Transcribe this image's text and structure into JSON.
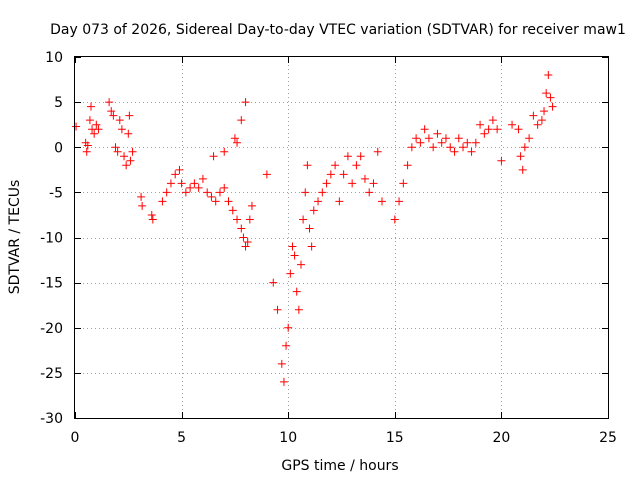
{
  "chart_data": {
    "type": "scatter",
    "title": "Day 073 of 2026, Sidereal Day-to-day VTEC variation (SDTVAR) for receiver maw1",
    "xlabel": "GPS time / hours",
    "ylabel": "SDTVAR / TECUs",
    "xlim": [
      0,
      25
    ],
    "ylim": [
      -30,
      10
    ],
    "xticks": [
      0,
      5,
      10,
      15,
      20,
      25
    ],
    "xtick_labels": [
      "0",
      "5",
      "10",
      "15",
      "20",
      "25"
    ],
    "yticks": [
      -30,
      -25,
      -20,
      -15,
      -10,
      -5,
      0,
      5,
      10
    ],
    "ytick_labels": [
      "-30",
      "-25",
      "-20",
      "-15",
      "-10",
      "-5",
      "0",
      "5",
      "10"
    ],
    "grid": true,
    "marker": "+",
    "color": "#ff0000",
    "series": [
      {
        "name": "SDTVAR",
        "x": [
          0.05,
          0.5,
          0.55,
          0.6,
          0.7,
          0.75,
          0.8,
          0.9,
          1.0,
          1.1,
          1.6,
          1.7,
          1.8,
          1.9,
          2.0,
          2.1,
          2.2,
          2.3,
          2.4,
          2.5,
          2.55,
          2.6,
          2.7,
          3.1,
          3.15,
          3.6,
          3.65,
          4.1,
          4.3,
          4.5,
          4.7,
          4.9,
          5.0,
          5.2,
          5.4,
          5.6,
          5.8,
          6.0,
          6.2,
          6.4,
          6.6,
          6.8,
          7.0,
          7.2,
          7.4,
          7.6,
          7.8,
          7.9,
          8.0,
          8.1,
          8.2,
          8.3,
          6.5,
          7.0,
          7.5,
          7.8,
          7.6,
          8.0,
          9.0,
          9.3,
          9.5,
          9.7,
          9.8,
          9.9,
          10.0,
          10.1,
          10.2,
          10.3,
          10.4,
          10.5,
          10.6,
          10.7,
          10.8,
          10.9,
          11.0,
          11.1,
          11.2,
          11.4,
          11.6,
          11.8,
          12.0,
          12.2,
          12.4,
          12.6,
          12.8,
          13.0,
          13.2,
          13.4,
          13.6,
          13.8,
          14.0,
          14.2,
          14.4,
          15.0,
          15.2,
          15.4,
          15.6,
          15.8,
          16.0,
          16.2,
          16.4,
          16.6,
          16.8,
          17.0,
          17.2,
          17.4,
          17.6,
          17.8,
          18.0,
          18.2,
          18.4,
          18.6,
          18.8,
          19.0,
          19.2,
          19.4,
          19.6,
          19.8,
          20.0,
          20.5,
          20.8,
          20.9,
          21.0,
          21.1,
          21.3,
          21.5,
          21.7,
          21.9,
          22.0,
          22.1,
          22.2,
          22.3,
          22.4
        ],
        "y": [
          2.3,
          0.5,
          -0.5,
          0.2,
          3.0,
          4.5,
          2.0,
          1.5,
          2.5,
          2.0,
          5.0,
          4.0,
          3.5,
          0.0,
          -0.5,
          3.0,
          2.0,
          -1.0,
          -2.0,
          1.5,
          3.5,
          -1.5,
          -0.5,
          -5.5,
          -6.5,
          -7.5,
          -8.0,
          -6.0,
          -5.0,
          -4.0,
          -3.0,
          -2.5,
          -4.0,
          -5.0,
          -4.5,
          -4.0,
          -4.5,
          -3.5,
          -5.0,
          -5.5,
          -6.0,
          -5.0,
          -4.5,
          -6.0,
          -7.0,
          -8.0,
          -9.0,
          -10.0,
          -11.0,
          -10.5,
          -8.0,
          -6.5,
          -1.0,
          -0.5,
          1.0,
          3.0,
          0.5,
          5.0,
          -3.0,
          -15.0,
          -18.0,
          -24.0,
          -26.0,
          -22.0,
          -20.0,
          -14.0,
          -11.0,
          -12.0,
          -16.0,
          -18.0,
          -13.0,
          -8.0,
          -5.0,
          -2.0,
          -9.0,
          -11.0,
          -7.0,
          -6.0,
          -5.0,
          -4.0,
          -3.0,
          -2.0,
          -6.0,
          -3.0,
          -1.0,
          -4.0,
          -2.0,
          -1.0,
          -3.5,
          -5.0,
          -4.0,
          -0.5,
          -6.0,
          -8.0,
          -6.0,
          -4.0,
          -2.0,
          0.0,
          1.0,
          0.5,
          2.0,
          1.0,
          0.0,
          1.5,
          0.5,
          1.0,
          0.0,
          -0.5,
          1.0,
          0.0,
          0.5,
          -0.5,
          0.5,
          2.5,
          1.5,
          2.0,
          3.0,
          2.0,
          -1.5,
          2.5,
          2.0,
          -1.0,
          -2.5,
          0.0,
          1.0,
          3.5,
          2.5,
          3.0,
          4.0,
          6.0,
          8.0,
          5.5,
          4.5
        ]
      }
    ]
  }
}
